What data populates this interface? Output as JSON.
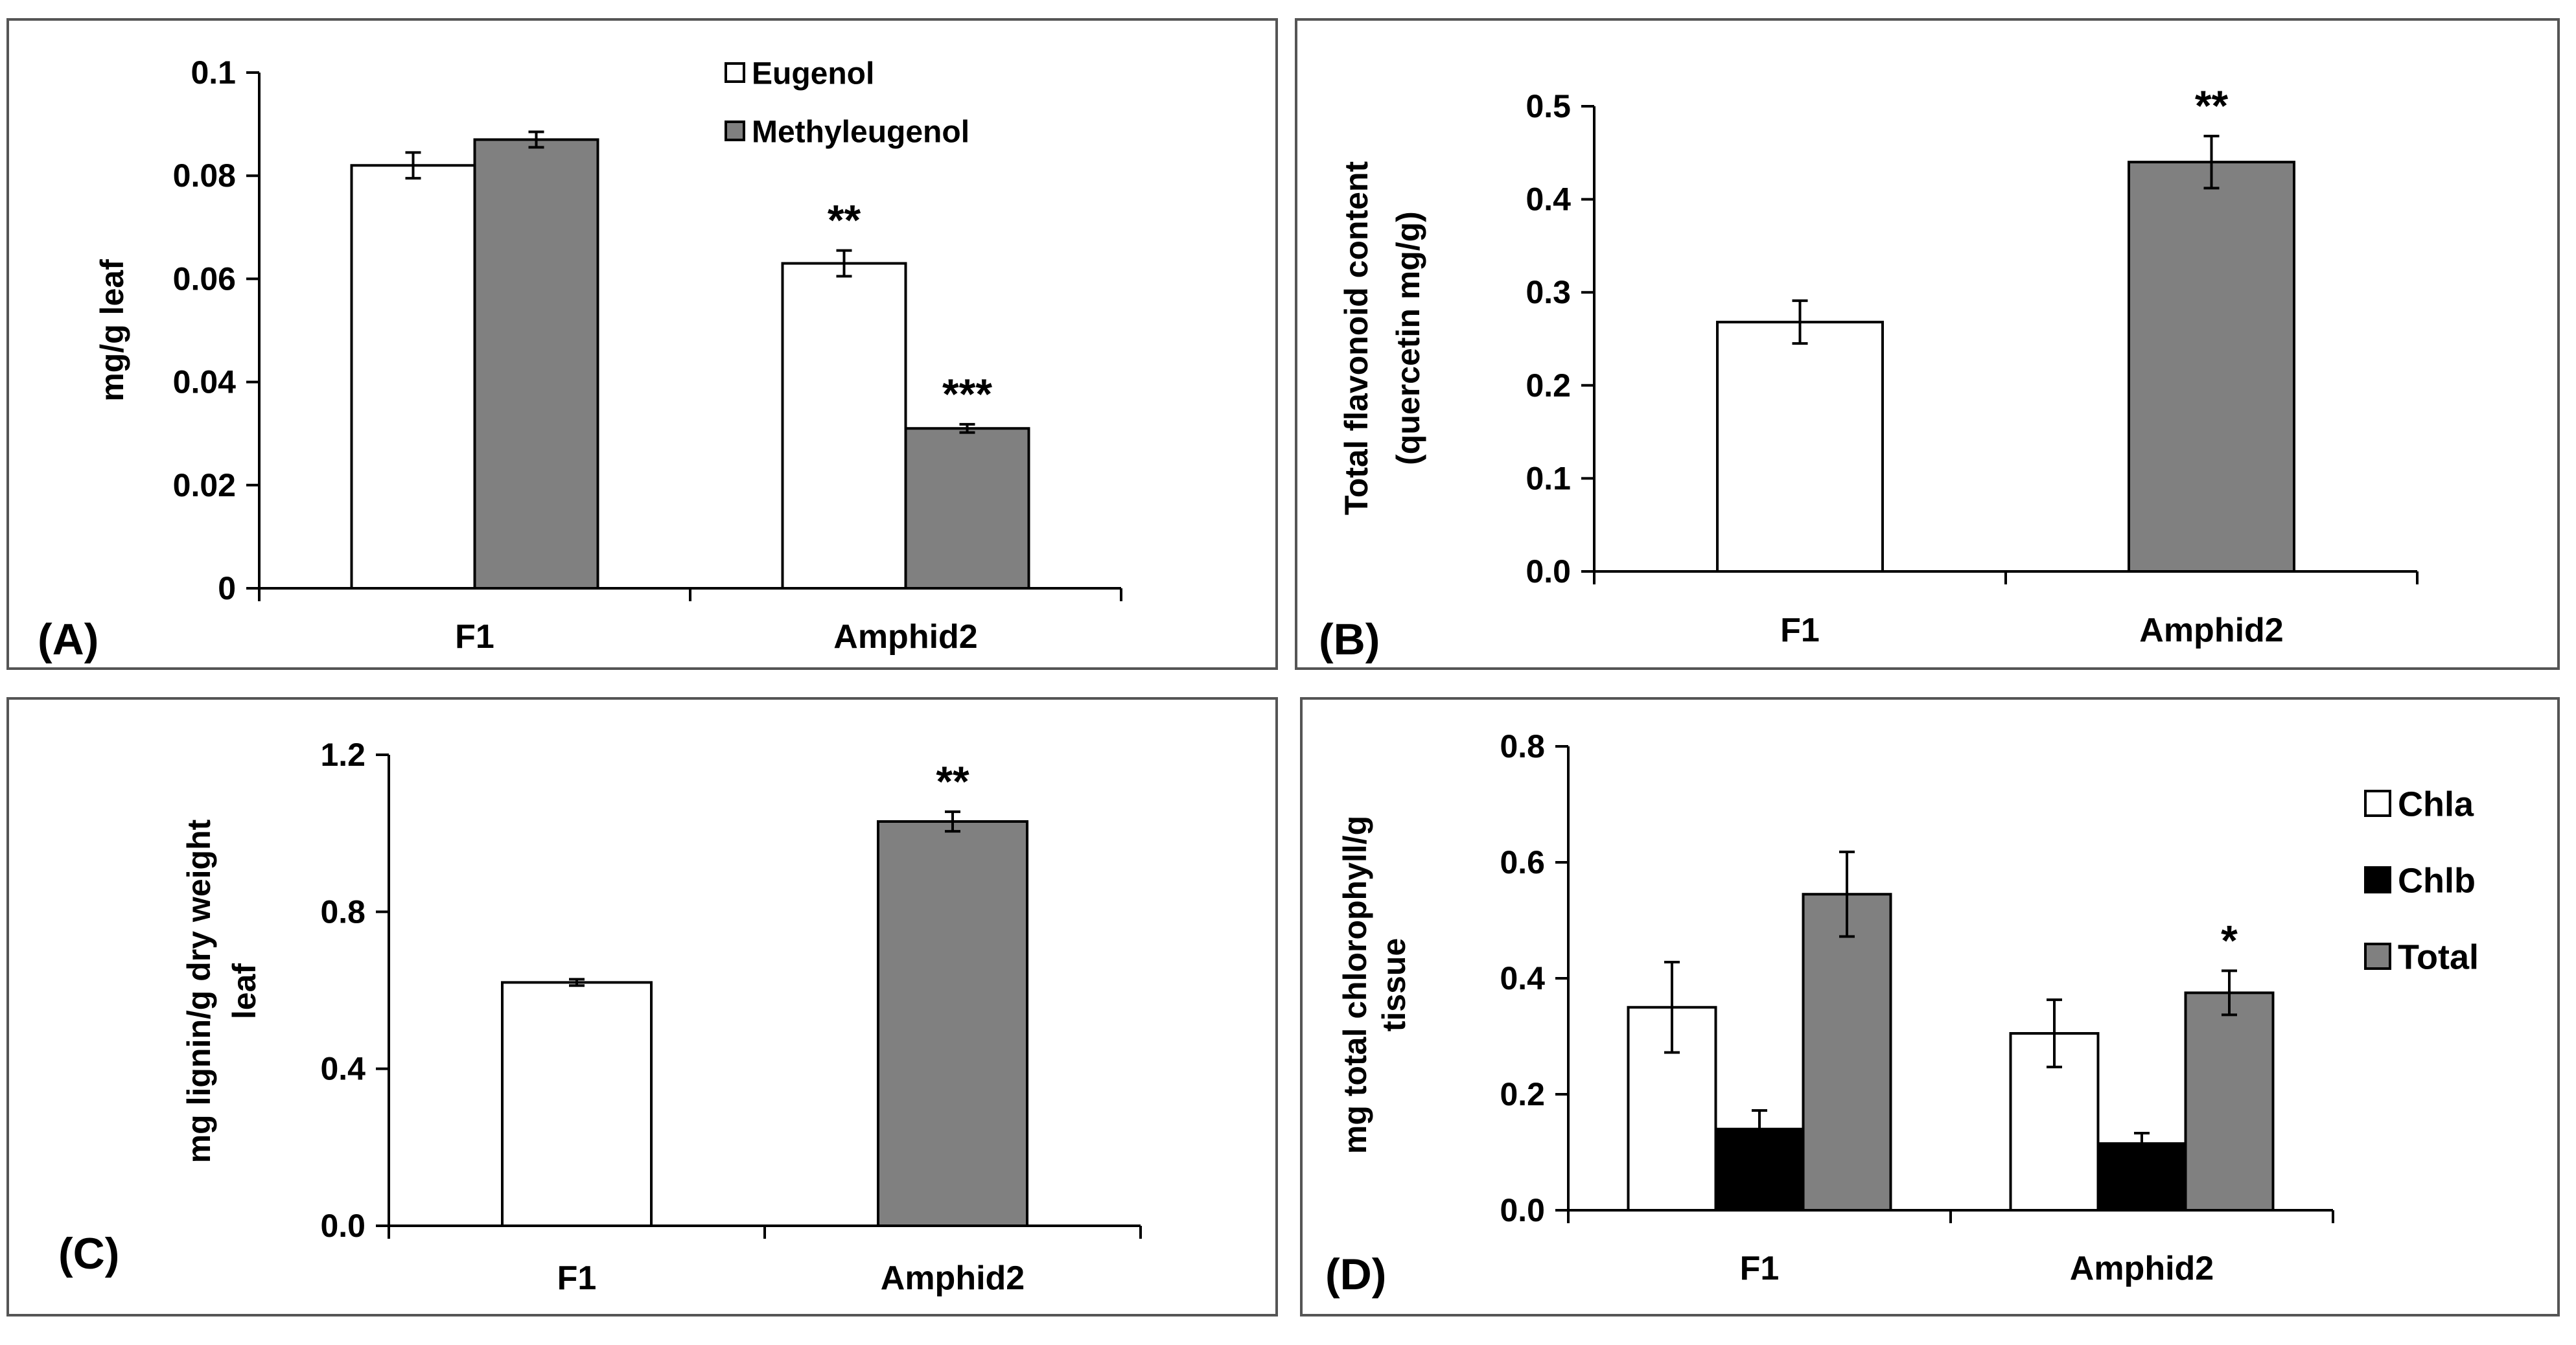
{
  "colors": {
    "white_bar": "#ffffff",
    "gray_bar": "#808080",
    "black_bar": "#000000",
    "stroke": "#000000"
  },
  "chart_data": [
    {
      "panel": "(A)",
      "type": "bar",
      "categories": [
        "F1",
        "Amphid2"
      ],
      "ylabel": "mg/g  leaf",
      "ylim": [
        0,
        0.1
      ],
      "yticks": [
        "0",
        "0.02",
        "0.04",
        "0.06",
        "0.08",
        "0.1"
      ],
      "legend_position": "top-right",
      "series": [
        {
          "name": "Eugenol",
          "color": "#ffffff",
          "values": [
            0.082,
            0.063
          ],
          "errors": [
            0.0025,
            0.0025
          ],
          "annotations": [
            "",
            "**"
          ]
        },
        {
          "name": "Methyleugenol",
          "color": "#808080",
          "values": [
            0.087,
            0.031
          ],
          "errors": [
            0.0015,
            0.0008
          ],
          "annotations": [
            "",
            "***"
          ]
        }
      ]
    },
    {
      "panel": "(B)",
      "type": "bar",
      "categories": [
        "F1",
        "Amphid2"
      ],
      "ylabel": [
        "Total flavonoid content",
        "(quercetin mg/g)"
      ],
      "ylim": [
        0,
        0.5
      ],
      "yticks": [
        "0.0",
        "0.1",
        "0.2",
        "0.3",
        "0.4",
        "0.5"
      ],
      "series": [
        {
          "colors": [
            "#ffffff",
            "#808080"
          ],
          "values": [
            0.268,
            0.44
          ],
          "errors": [
            0.023,
            0.028
          ],
          "annotations": [
            "",
            "**"
          ]
        }
      ]
    },
    {
      "panel": "(C)",
      "type": "bar",
      "categories": [
        "F1",
        "Amphid2"
      ],
      "ylabel": [
        "mg lignin/g dry weight",
        "leaf"
      ],
      "ylim": [
        0,
        1.2
      ],
      "yticks": [
        "0.0",
        "0.4",
        "0.8",
        "1.2"
      ],
      "series": [
        {
          "colors": [
            "#ffffff",
            "#808080"
          ],
          "values": [
            0.62,
            1.03
          ],
          "errors": [
            0.008,
            0.025
          ],
          "annotations": [
            "",
            "**"
          ]
        }
      ]
    },
    {
      "panel": "(D)",
      "type": "bar",
      "categories": [
        "F1",
        "Amphid2"
      ],
      "ylabel": [
        "mg total chlorophyll/g",
        "tissue"
      ],
      "ylim": [
        0,
        0.8
      ],
      "yticks": [
        "0.0",
        "0.2",
        "0.4",
        "0.6",
        "0.8"
      ],
      "legend_position": "right",
      "series": [
        {
          "name": "Chla",
          "color": "#ffffff",
          "values": [
            0.35,
            0.305
          ],
          "errors": [
            0.078,
            0.058
          ],
          "annotations": [
            "",
            ""
          ]
        },
        {
          "name": "Chlb",
          "color": "#000000",
          "values": [
            0.14,
            0.115
          ],
          "errors": [
            0.032,
            0.018
          ],
          "annotations": [
            "",
            ""
          ]
        },
        {
          "name": "Total",
          "color": "#808080",
          "values": [
            0.545,
            0.375
          ],
          "errors": [
            0.073,
            0.038
          ],
          "annotations": [
            "",
            "*"
          ]
        }
      ]
    }
  ]
}
